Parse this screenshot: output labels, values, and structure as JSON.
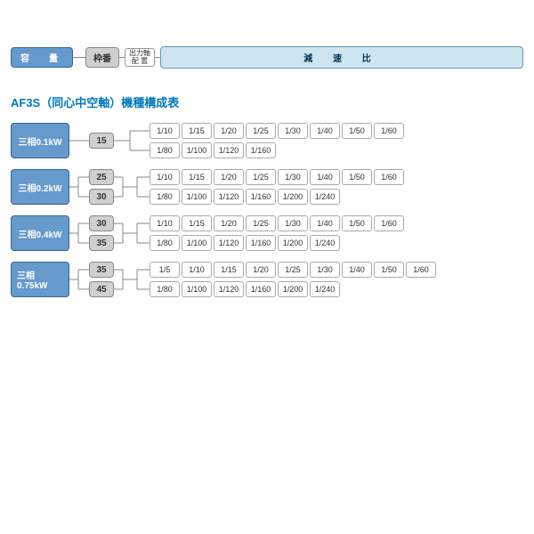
{
  "legend": {
    "capacity": "容　量",
    "frame": "枠番",
    "shaft_line1": "出力軸",
    "shaft_line2": "配 置",
    "ratio": "減 速 比"
  },
  "section_title": "AF3S（同心中空軸）機種構成表",
  "models": [
    {
      "capacity": "三相0.1kW",
      "frames": [
        "15"
      ],
      "ratio_rows": [
        [
          "1/10",
          "1/15",
          "1/20",
          "1/25",
          "1/30",
          "1/40",
          "1/50",
          "1/60"
        ],
        [
          "1/80",
          "1/100",
          "1/120",
          "1/160"
        ]
      ]
    },
    {
      "capacity": "三相0.2kW",
      "frames": [
        "25",
        "30"
      ],
      "ratio_rows": [
        [
          "1/10",
          "1/15",
          "1/20",
          "1/25",
          "1/30",
          "1/40",
          "1/50",
          "1/60"
        ],
        [
          "1/80",
          "1/100",
          "1/120",
          "1/160",
          "1/200",
          "1/240"
        ]
      ]
    },
    {
      "capacity": "三相0.4kW",
      "frames": [
        "30",
        "35"
      ],
      "ratio_rows": [
        [
          "1/10",
          "1/15",
          "1/20",
          "1/25",
          "1/30",
          "1/40",
          "1/50",
          "1/60"
        ],
        [
          "1/80",
          "1/100",
          "1/120",
          "1/160",
          "1/200",
          "1/240"
        ]
      ]
    },
    {
      "capacity": "三相0.75kW",
      "frames": [
        "35",
        "45"
      ],
      "ratio_rows": [
        [
          "1/5",
          "1/10",
          "1/15",
          "1/20",
          "1/25",
          "1/30",
          "1/40",
          "1/50",
          "1/60"
        ],
        [
          "1/80",
          "1/100",
          "1/120",
          "1/160",
          "1/200",
          "1/240"
        ]
      ]
    }
  ],
  "colors": {
    "cap_bg": "#6699cc",
    "cap_border": "#336699",
    "frame_bg": "#d0d0d0",
    "frame_border": "#888888",
    "ratio_header_bg": "#cce5f0",
    "ratio_box_border": "#aaaaaa",
    "title_color": "#0077bb",
    "connector": "#888888"
  }
}
